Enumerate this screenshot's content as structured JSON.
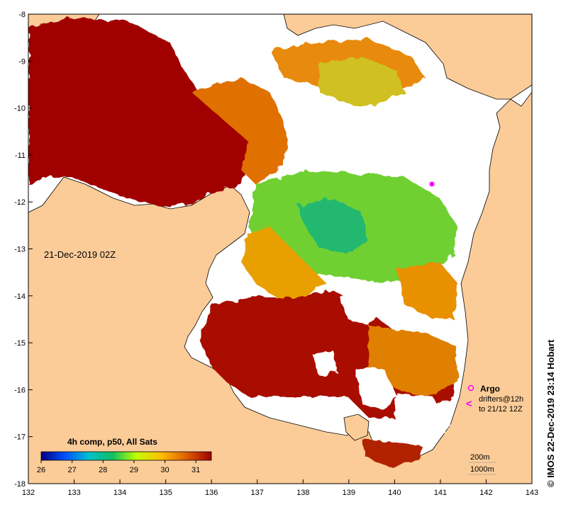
{
  "map": {
    "lon_range": [
      132,
      143
    ],
    "lat_range": [
      -18,
      -8
    ],
    "lon_ticks": [
      "132",
      "133",
      "134",
      "135",
      "136",
      "137",
      "138",
      "139",
      "140",
      "141",
      "142",
      "143"
    ],
    "lat_ticks": [
      "-8",
      "-9",
      "-10",
      "-11",
      "-12",
      "-13",
      "-14",
      "-15",
      "-16",
      "-17",
      "-18"
    ],
    "date_label": "21-Dec-2019 02Z",
    "copyright": "© IMOS 22-Dec-2019 23:14 Hobart",
    "colors": {
      "land": "#fccc98",
      "no_data": "#ffffff",
      "coast": "#000000"
    }
  },
  "colorbar": {
    "title": "4h comp, p50, All Sats",
    "ticks": [
      "26",
      "27",
      "28",
      "29",
      "30",
      "31"
    ],
    "range": [
      26,
      31.5
    ],
    "stops": [
      "#000080",
      "#0050ff",
      "#00c0d0",
      "#10c060",
      "#c0ff00",
      "#ffc000",
      "#e06000",
      "#a00000"
    ]
  },
  "legend": {
    "argo_label": "Argo",
    "drifters_line1": "drifters@12h",
    "drifters_line2": "to 21/12 12Z",
    "argo_color": "#ff00ff"
  },
  "isobaths": {
    "line1": "200m",
    "line2": "1000m"
  }
}
